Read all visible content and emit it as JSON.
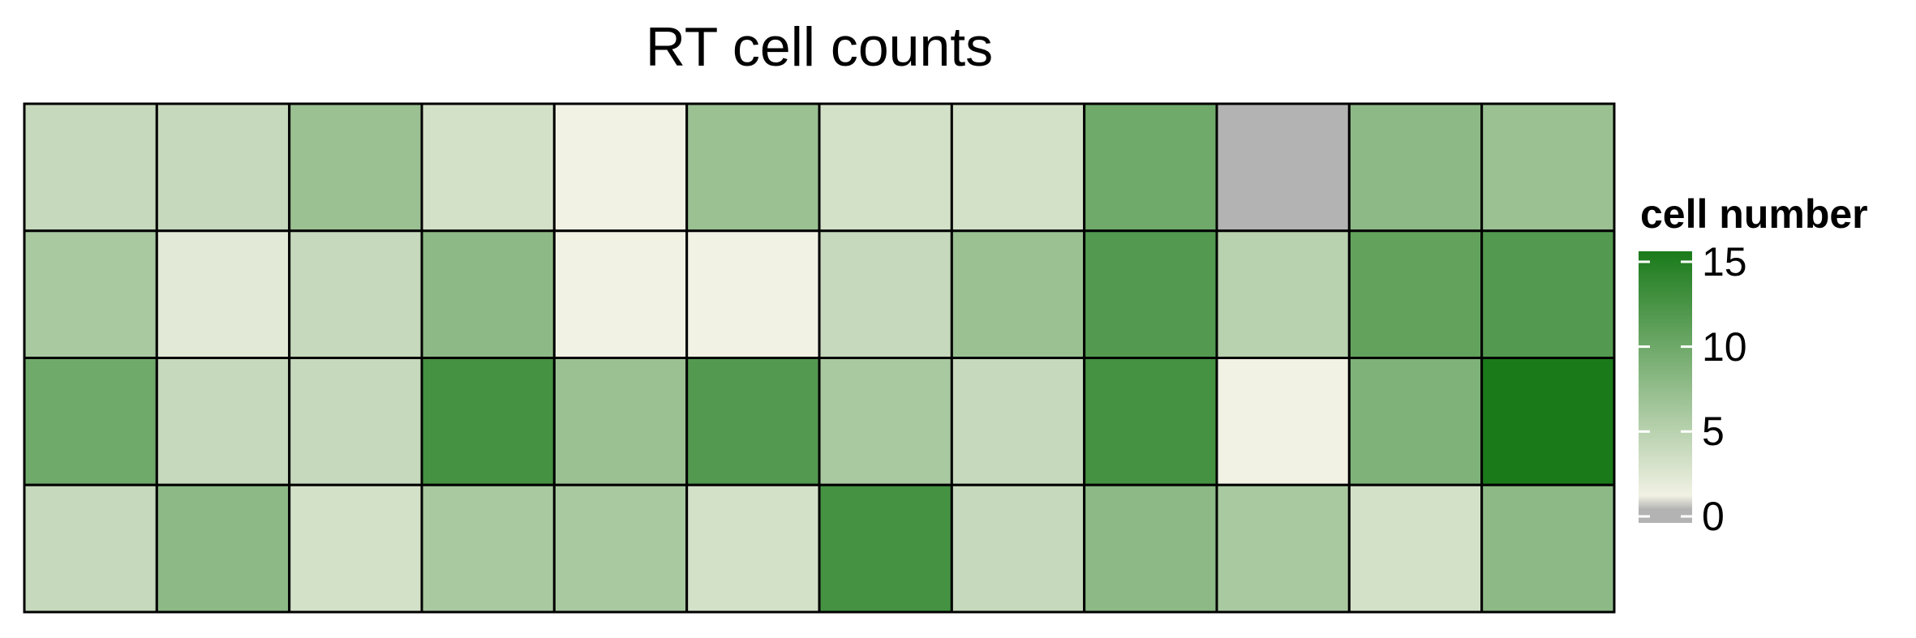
{
  "chart_data": {
    "type": "heatmap",
    "title": "RT cell counts",
    "xlabel": "",
    "ylabel": "",
    "rows": 4,
    "cols": 12,
    "values": [
      [
        4,
        4,
        7,
        3,
        1,
        7,
        3,
        3,
        10,
        0,
        8,
        7
      ],
      [
        6,
        2,
        4,
        8,
        1,
        1,
        4,
        7,
        12,
        5,
        11,
        12
      ],
      [
        10,
        4,
        4,
        13,
        7,
        12,
        6,
        4,
        13,
        1,
        9,
        16
      ],
      [
        4,
        8,
        3,
        6,
        6,
        3,
        13,
        4,
        8,
        6,
        3,
        8
      ]
    ],
    "legend": {
      "title": "cell number",
      "ticks": [
        0,
        5,
        10,
        15
      ],
      "range": [
        0,
        16
      ],
      "placement": "right",
      "colors": {
        "zero": "#b3b3b3",
        "low": "#f1f1e4",
        "high": "#1a7a1a"
      }
    },
    "grid": true,
    "grid_color": "#000000"
  }
}
